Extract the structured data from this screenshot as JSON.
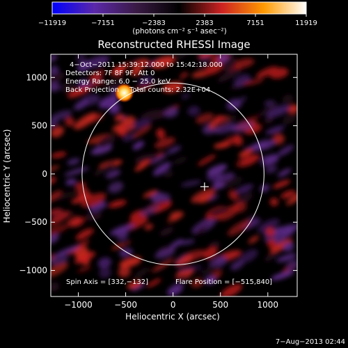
{
  "chart_data": {
    "type": "heatmap",
    "title": "Reconstructed RHESSI Image",
    "xlabel": "Heliocentric X (arcsec)",
    "ylabel": "Heliocentric Y (arcsec)",
    "xlim": [
      -1290,
      1310
    ],
    "ylim": [
      -1270,
      1240
    ],
    "x_ticks": [
      -1000,
      -500,
      0,
      500,
      1000
    ],
    "y_ticks": [
      -1000,
      -500,
      0,
      500,
      1000
    ],
    "x_tick_labels": [
      "−1000",
      "−500",
      "0",
      "500",
      "1000"
    ],
    "y_tick_labels": [
      "−1000",
      "−500",
      "0",
      "500",
      "1000"
    ],
    "colorbar": {
      "range": [
        -11919,
        11919
      ],
      "ticks": [
        -11919,
        -7151,
        -2383,
        2383,
        7151,
        11919
      ],
      "tick_labels": [
        "−11919",
        "−7151",
        "−2383",
        "2383",
        "7151",
        "11919"
      ],
      "unit_label": "(photons cm⁻² s⁻¹ asec⁻²)",
      "colors": [
        "#0000ff",
        "#5a28a8",
        "#3a1a44",
        "#000000",
        "#cc2222",
        "#ff9a00",
        "#ffffff"
      ]
    },
    "annotations": {
      "time": "4−Oct−2011 15:39:12.000 to 15:42:18.000",
      "detectors": "Detectors: 7F 8F 9F, Att 0",
      "energy": "Energy Range: 6.0 − 25.0 keV",
      "method": "Back Projection",
      "counts": "Total counts: 2.32E+04",
      "spin_axis": "Spin Axis = [332,−132]",
      "flare_position": "Flare Position = [−515,840]"
    },
    "solar_limb_radius": 960,
    "cross_marker": [
      332,
      -132
    ],
    "flare_source": [
      -515,
      840
    ],
    "grid": false
  },
  "footer": {
    "date": "7−Aug−2013 02:44"
  }
}
